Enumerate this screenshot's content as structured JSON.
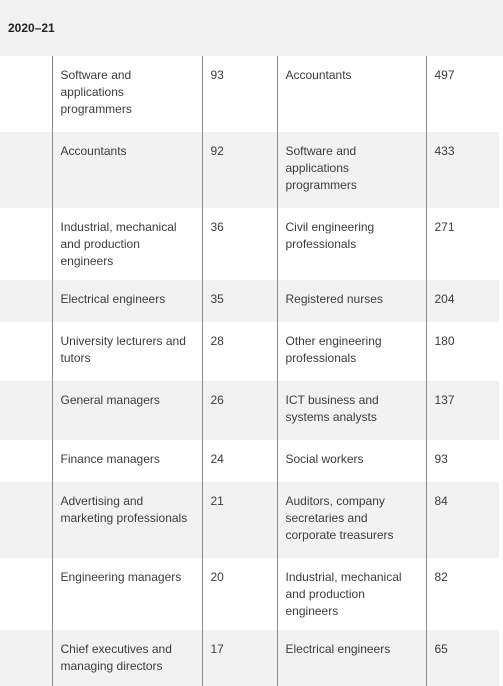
{
  "header": {
    "year": "2020–21"
  },
  "rows": [
    {
      "occ_a": "Software and applications programmers",
      "val_a": "93",
      "occ_b": "Accountants",
      "val_b": "497"
    },
    {
      "occ_a": "Accountants",
      "val_a": "92",
      "occ_b": "Software and applications programmers",
      "val_b": "433"
    },
    {
      "occ_a": "Industrial, mechanical and production engineers",
      "val_a": "36",
      "occ_b": "Civil engineering professionals",
      "val_b": "271"
    },
    {
      "occ_a": "Electrical engineers",
      "val_a": "35",
      "occ_b": "Registered nurses",
      "val_b": "204"
    },
    {
      "occ_a": "University lecturers and tutors",
      "val_a": "28",
      "occ_b": "Other engineering professionals",
      "val_b": "180"
    },
    {
      "occ_a": "General managers",
      "val_a": "26",
      "occ_b": "ICT business and systems analysts",
      "val_b": "137"
    },
    {
      "occ_a": "Finance managers",
      "val_a": "24",
      "occ_b": "Social workers",
      "val_b": "93"
    },
    {
      "occ_a": "Advertising and marketing professionals",
      "val_a": "21",
      "occ_b": "Auditors, company secretaries and corporate treasurers",
      "val_b": "84"
    },
    {
      "occ_a": "Engineering managers",
      "val_a": "20",
      "occ_b": "Industrial, mechanical and production engineers",
      "val_b": "82"
    },
    {
      "occ_a": "Chief executives and managing directors",
      "val_a": "17",
      "occ_b": "Electrical engineers",
      "val_b": "65"
    }
  ]
}
